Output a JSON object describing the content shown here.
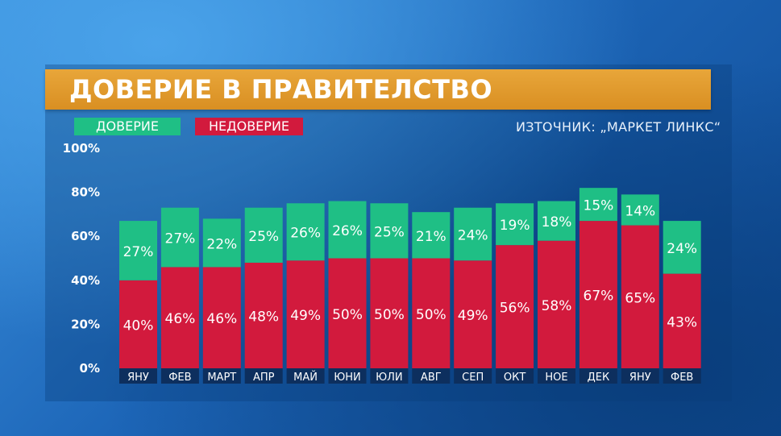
{
  "title": "ДОВЕРИЕ В ПРАВИТЕЛСТВО",
  "source": "ИЗТОЧНИК: „МАРКЕТ ЛИНКС“",
  "legend": {
    "trust": "ДОВЕРИЕ",
    "distrust": "НЕДОВЕРИЕ"
  },
  "colors": {
    "trust": "#1fbf85",
    "distrust": "#d21a3d",
    "title_bg": "#e09a2c",
    "month_bg": "#0d2f5e"
  },
  "chart_data": {
    "type": "bar",
    "stacked": true,
    "categories": [
      "ЯНУ",
      "ФЕВ",
      "МАРТ",
      "АПР",
      "МАЙ",
      "ЮНИ",
      "ЮЛИ",
      "АВГ",
      "СЕП",
      "ОКТ",
      "НОЕ",
      "ДЕК",
      "ЯНУ",
      "ФЕВ"
    ],
    "series": [
      {
        "name": "НЕДОВЕРИЕ",
        "values": [
          40,
          46,
          46,
          48,
          49,
          50,
          50,
          50,
          49,
          56,
          58,
          67,
          65,
          43
        ]
      },
      {
        "name": "ДОВЕРИЕ",
        "values": [
          27,
          27,
          22,
          25,
          26,
          26,
          25,
          21,
          24,
          19,
          18,
          15,
          14,
          24
        ]
      }
    ],
    "yticks": [
      "0%",
      "20%",
      "40%",
      "60%",
      "80%",
      "100%"
    ],
    "ylim": [
      0,
      100
    ],
    "title": "ДОВЕРИЕ В ПРАВИТЕЛСТВО",
    "xlabel": "",
    "ylabel": "",
    "legend_position": "top-left"
  }
}
